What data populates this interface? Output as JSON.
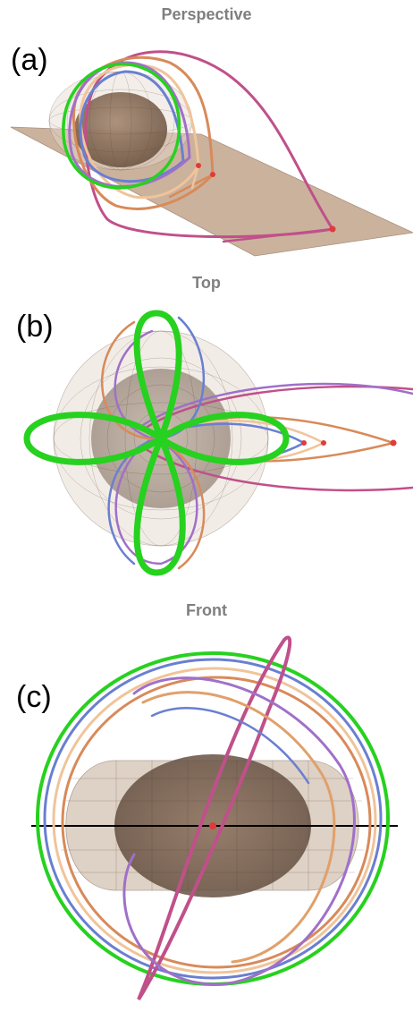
{
  "panels": [
    {
      "title": "Perspective",
      "label": "(a)"
    },
    {
      "title": "Top",
      "label": "(b)"
    },
    {
      "title": "Front",
      "label": "(c)"
    }
  ],
  "colors": {
    "plane": "#c2a58d",
    "body_outer": "#d9cfc4",
    "body_inner": "#8a6e5a",
    "green": "#27d11f",
    "magenta": "#c0508a",
    "orange": "#e0a06a",
    "blue": "#6a7fd0",
    "purple": "#a070c8",
    "peach": "#f0c49a",
    "point": "#e03a3a",
    "axis": "#000000"
  }
}
